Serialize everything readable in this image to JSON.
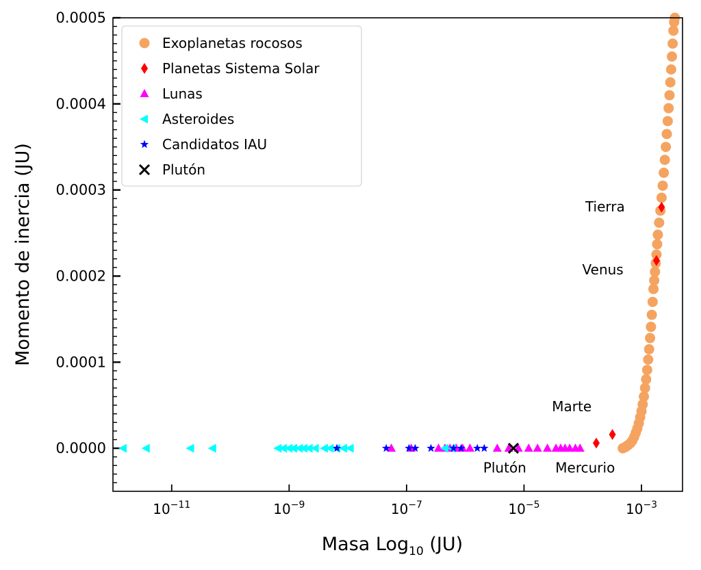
{
  "chart_data": {
    "type": "scatter",
    "title": "",
    "xlabel": "Masa Log",
    "xlabel_sub": "10",
    "xlabel_unit": " (JU)",
    "ylabel": "Momento de inercia (JU)",
    "xscale": "log",
    "xlim": [
      1e-12,
      0.005
    ],
    "ylim": [
      -5e-05,
      0.0005
    ],
    "grid": false,
    "legend_position": "top-left",
    "x_ticks": [
      {
        "exp": "−11",
        "value": 1e-11
      },
      {
        "exp": "−9",
        "value": 1e-09
      },
      {
        "exp": "−7",
        "value": 1e-07
      },
      {
        "exp": "−5",
        "value": 1e-05
      },
      {
        "exp": "−3",
        "value": 0.001
      }
    ],
    "y_ticks": [
      "0.0000",
      "0.0001",
      "0.0002",
      "0.0003",
      "0.0004",
      "0.0005"
    ],
    "y_tick_values": [
      0,
      0.0001,
      0.0002,
      0.0003,
      0.0004,
      0.0005
    ],
    "series": [
      {
        "name": "Exoplanetas rocosos",
        "marker": "circle",
        "color": "#F4A460",
        "points": [
          [
            0.00048,
            0.0
          ],
          [
            0.00052,
            1e-06
          ],
          [
            0.00056,
            2.5e-06
          ],
          [
            0.0006,
            4e-06
          ],
          [
            0.00065,
            6e-06
          ],
          [
            0.0007,
            9e-06
          ],
          [
            0.00075,
            1.3e-05
          ],
          [
            0.0008,
            1.8e-05
          ],
          [
            0.00085,
            2.3e-05
          ],
          [
            0.0009,
            2.9e-05
          ],
          [
            0.00095,
            3.6e-05
          ],
          [
            0.001,
            4.3e-05
          ],
          [
            0.00105,
            5.1e-05
          ],
          [
            0.0011,
            6e-05
          ],
          [
            0.00115,
            7e-05
          ],
          [
            0.0012,
            8e-05
          ],
          [
            0.00125,
            9.1e-05
          ],
          [
            0.0013,
            0.000103
          ],
          [
            0.00135,
            0.000115
          ],
          [
            0.0014,
            0.000128
          ],
          [
            0.00145,
            0.000141
          ],
          [
            0.0015,
            0.000155
          ],
          [
            0.00155,
            0.00017
          ],
          [
            0.0016,
            0.000185
          ],
          [
            0.00165,
            0.000195
          ],
          [
            0.0017,
            0.000205
          ],
          [
            0.00175,
            0.000215
          ],
          [
            0.0018,
            0.000225
          ],
          [
            0.00185,
            0.000237
          ],
          [
            0.0019,
            0.000248
          ],
          [
            0.002,
            0.000262
          ],
          [
            0.0021,
            0.000276
          ],
          [
            0.0022,
            0.000291
          ],
          [
            0.0023,
            0.000305
          ],
          [
            0.0024,
            0.00032
          ],
          [
            0.0025,
            0.000335
          ],
          [
            0.0026,
            0.00035
          ],
          [
            0.0027,
            0.000365
          ],
          [
            0.0028,
            0.00038
          ],
          [
            0.0029,
            0.000395
          ],
          [
            0.003,
            0.00041
          ],
          [
            0.0031,
            0.000425
          ],
          [
            0.0032,
            0.00044
          ],
          [
            0.0033,
            0.000455
          ],
          [
            0.0034,
            0.00047
          ],
          [
            0.0035,
            0.000485
          ],
          [
            0.0036,
            0.000495
          ],
          [
            0.0037,
            0.0005
          ]
        ]
      },
      {
        "name": "Planetas Sistema Solar",
        "marker": "diamond",
        "color": "#FF0000",
        "points": [
          [
            0.00017,
            6e-06
          ],
          [
            0.00032,
            1.6e-05
          ],
          [
            0.0018,
            0.000218
          ],
          [
            0.0022,
            0.00028
          ]
        ]
      },
      {
        "name": "Lunas",
        "marker": "triangle-up",
        "color": "#FF00FF",
        "points": [
          [
            5.5e-08,
            0.0
          ],
          [
            1.2e-07,
            0.0
          ],
          [
            3.5e-07,
            0.0
          ],
          [
            4.5e-07,
            0.0
          ],
          [
            5.5e-07,
            0.0
          ],
          [
            7e-07,
            0.0
          ],
          [
            9e-07,
            0.0
          ],
          [
            1.2e-06,
            0.0
          ],
          [
            3.5e-06,
            0.0
          ],
          [
            5.5e-06,
            0.0
          ],
          [
            8e-06,
            0.0
          ],
          [
            1.2e-05,
            0.0
          ],
          [
            1.7e-05,
            0.0
          ],
          [
            2.5e-05,
            0.0
          ],
          [
            3.5e-05,
            0.0
          ],
          [
            4.2e-05,
            0.0
          ],
          [
            5e-05,
            0.0
          ],
          [
            6e-05,
            0.0
          ],
          [
            7.5e-05,
            0.0
          ],
          [
            9e-05,
            0.0
          ]
        ]
      },
      {
        "name": "Asteroides",
        "marker": "triangle-left",
        "color": "#00FFFF",
        "points": [
          [
            1.5e-12,
            0.0
          ],
          [
            3.7e-12,
            0.0
          ],
          [
            2.1e-11,
            0.0
          ],
          [
            5e-11,
            0.0
          ],
          [
            6.5e-10,
            0.0
          ],
          [
            8e-10,
            0.0
          ],
          [
            1e-09,
            0.0
          ],
          [
            1.2e-09,
            0.0
          ],
          [
            1.5e-09,
            0.0
          ],
          [
            1.8e-09,
            0.0
          ],
          [
            2.2e-09,
            0.0
          ],
          [
            2.8e-09,
            0.0
          ],
          [
            4e-09,
            0.0
          ],
          [
            5e-09,
            0.0
          ],
          [
            6.5e-09,
            0.0
          ],
          [
            8.5e-09,
            0.0
          ],
          [
            1.1e-08,
            0.0
          ],
          [
            4.5e-07,
            0.0
          ],
          [
            6e-07,
            0.0
          ]
        ]
      },
      {
        "name": "Candidatos IAU",
        "marker": "star",
        "color": "#0000FF",
        "points": [
          [
            6.5e-09,
            0.0
          ],
          [
            4.5e-08,
            0.0
          ],
          [
            1.1e-07,
            0.0
          ],
          [
            1.4e-07,
            0.0
          ],
          [
            2.6e-07,
            0.0
          ],
          [
            6.3e-07,
            0.0
          ],
          [
            8.5e-07,
            0.0
          ],
          [
            1.6e-06,
            0.0
          ],
          [
            2.1e-06,
            0.0
          ]
        ]
      },
      {
        "name": "Plutón",
        "marker": "x",
        "color": "#000000",
        "points": [
          [
            6.6e-06,
            0.0
          ]
        ]
      }
    ],
    "annotations": [
      {
        "text": "Tierra",
        "x": 0.00024,
        "y": 0.000275
      },
      {
        "text": "Venus",
        "x": 0.00022,
        "y": 0.000202
      },
      {
        "text": "Marte",
        "x": 6.5e-05,
        "y": 4.3e-05
      },
      {
        "text": "Mercurio",
        "x": 0.00011,
        "y": -2.8e-05
      },
      {
        "text": "Plutón",
        "x": 4.7e-06,
        "y": -2.8e-05
      }
    ]
  }
}
